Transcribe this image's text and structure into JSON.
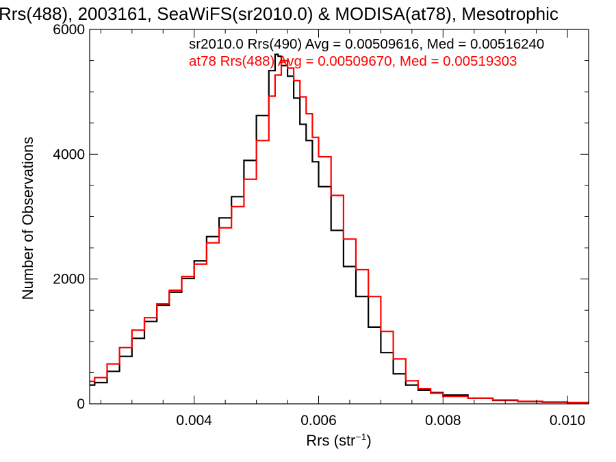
{
  "chart_data": {
    "type": "line",
    "step": true,
    "title": "Rrs(488), 2003161, SeaWiFS(sr2010.0) & MODISA(at78), Mesotrophic",
    "xlabel_main": "Rrs (str",
    "xlabel_sup": "−1",
    "xlabel_end": ")",
    "ylabel": "Number of Observations",
    "xlim": [
      0.00232,
      0.01034
    ],
    "ylim": [
      0,
      6000
    ],
    "x_ticks": [
      0.004,
      0.006,
      0.008,
      0.01
    ],
    "x_tick_labels": [
      "0.004",
      "0.006",
      "0.008",
      "0.010"
    ],
    "y_ticks": [
      0,
      2000,
      4000,
      6000
    ],
    "y_tick_labels": [
      "0",
      "2000",
      "4000",
      "6000"
    ],
    "legend_position": "top-right",
    "grid": false,
    "series": [
      {
        "name": "sr2010.0 Rrs(490) Avg = 0.00509616, Med = 0.00516240",
        "color": "#000000",
        "x": [
          0.00232,
          0.0024,
          0.0026,
          0.0028,
          0.003,
          0.0032,
          0.0034,
          0.0036,
          0.0038,
          0.004,
          0.0042,
          0.0044,
          0.0046,
          0.0048,
          0.005,
          0.0052,
          0.0053,
          0.00535,
          0.0054,
          0.0055,
          0.0056,
          0.0057,
          0.0058,
          0.0059,
          0.006,
          0.0062,
          0.0064,
          0.0066,
          0.0068,
          0.007,
          0.0072,
          0.0074,
          0.0076,
          0.0078,
          0.008,
          0.0084,
          0.0088,
          0.0092,
          0.0096,
          0.01,
          0.01034
        ],
        "y": [
          300,
          340,
          520,
          760,
          1050,
          1320,
          1580,
          1790,
          2010,
          2290,
          2680,
          2980,
          3320,
          3900,
          4620,
          5340,
          5600,
          5570,
          5420,
          5250,
          4900,
          4480,
          4220,
          3880,
          3480,
          2780,
          2200,
          1720,
          1230,
          820,
          480,
          300,
          220,
          180,
          140,
          90,
          55,
          35,
          25,
          20,
          18
        ]
      },
      {
        "name": "at78 Rrs(488) Avg = 0.00509670, Med = 0.00519303",
        "color": "#ff0000",
        "x": [
          0.00232,
          0.0024,
          0.0026,
          0.0028,
          0.003,
          0.0032,
          0.0034,
          0.0036,
          0.0038,
          0.004,
          0.0042,
          0.0044,
          0.0046,
          0.0048,
          0.005,
          0.0052,
          0.0053,
          0.0054,
          0.0055,
          0.0056,
          0.0057,
          0.0058,
          0.0059,
          0.006,
          0.0062,
          0.0064,
          0.0066,
          0.0068,
          0.007,
          0.0072,
          0.0074,
          0.0076,
          0.0078,
          0.008,
          0.0084,
          0.0088,
          0.0092,
          0.0096,
          0.01,
          0.01034
        ],
        "y": [
          360,
          420,
          640,
          900,
          1180,
          1380,
          1600,
          1820,
          2040,
          2240,
          2580,
          2820,
          3160,
          3600,
          4220,
          4930,
          5270,
          5500,
          5380,
          5180,
          4920,
          4650,
          4270,
          3960,
          3340,
          2640,
          2150,
          1720,
          1160,
          720,
          370,
          240,
          170,
          120,
          90,
          60,
          40,
          30,
          22,
          18
        ]
      }
    ]
  }
}
